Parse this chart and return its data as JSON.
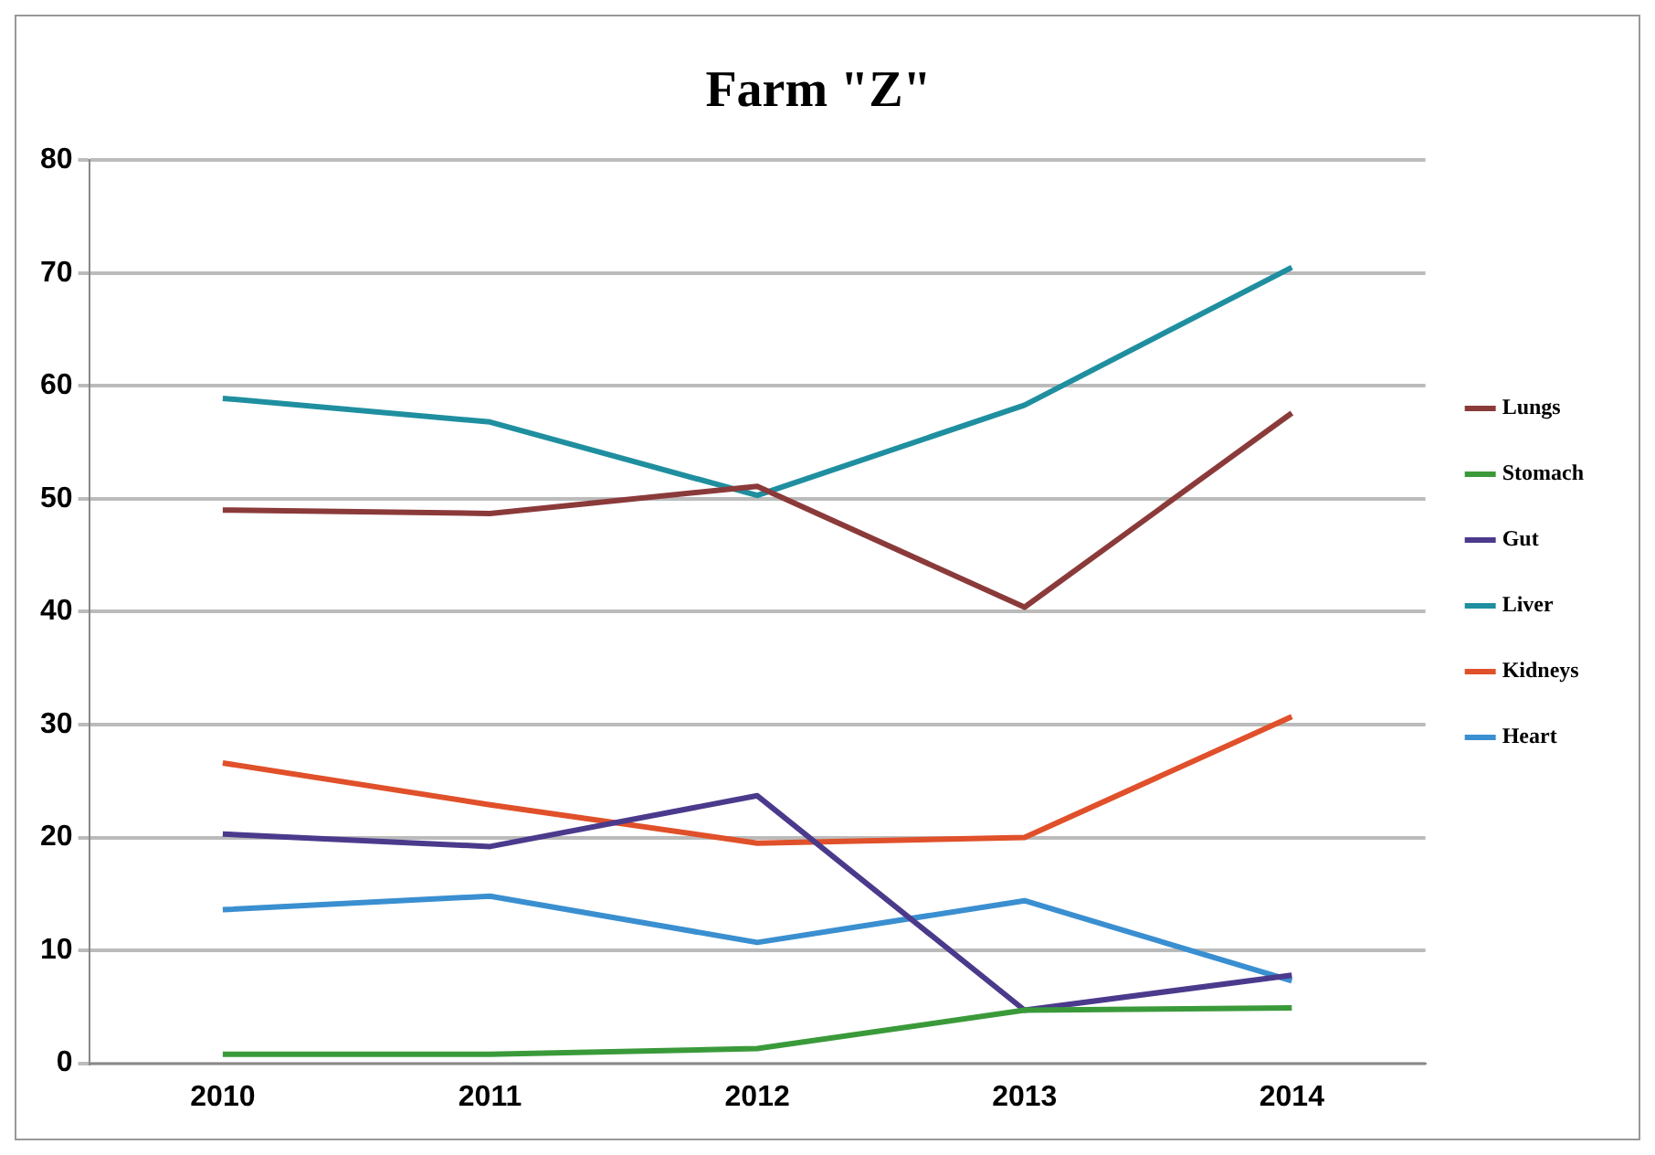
{
  "chart_data": {
    "type": "line",
    "title": "Farm \"Z\"",
    "categories": [
      "2010",
      "2011",
      "2012",
      "2013",
      "2014"
    ],
    "series": [
      {
        "name": "Lungs",
        "color": "#8b3a3a",
        "values": [
          49.0,
          48.7,
          51.1,
          40.4,
          57.6
        ]
      },
      {
        "name": "Stomach",
        "color": "#3a9a3a",
        "values": [
          0.8,
          0.8,
          1.3,
          4.7,
          4.9
        ]
      },
      {
        "name": "Gut",
        "color": "#4b3a8c",
        "values": [
          20.3,
          19.2,
          23.7,
          4.7,
          7.8
        ]
      },
      {
        "name": "Liver",
        "color": "#1f8fa0",
        "values": [
          58.9,
          56.8,
          50.3,
          58.3,
          70.5
        ]
      },
      {
        "name": "Kidneys",
        "color": "#e0502a",
        "values": [
          26.6,
          22.9,
          19.5,
          20.0,
          30.7
        ]
      },
      {
        "name": "Heart",
        "color": "#3a8fd0",
        "values": [
          13.6,
          14.8,
          10.7,
          14.4,
          7.3
        ]
      }
    ],
    "ylim": [
      0,
      80
    ],
    "yticks": [
      0,
      10,
      20,
      30,
      40,
      50,
      60,
      70,
      80
    ],
    "grid": "y",
    "legend": "right",
    "marker": "none",
    "line_style": "solid"
  }
}
